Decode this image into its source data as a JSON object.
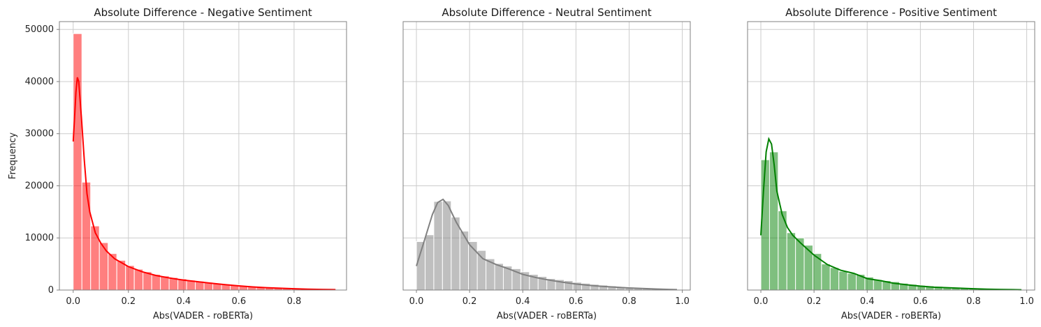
{
  "chart_data": [
    {
      "type": "bar",
      "title": "Absolute Difference - Negative Sentiment",
      "xlabel": "Abs(VADER - roBERTa)",
      "ylabel": "Frequency",
      "xlim": [
        -0.05,
        0.99
      ],
      "ylim": [
        0,
        51500
      ],
      "xticks": [
        "0.0",
        "0.2",
        "0.4",
        "0.6",
        "0.8"
      ],
      "yticks": [
        "0",
        "10000",
        "20000",
        "30000",
        "40000",
        "50000"
      ],
      "grid": true,
      "bar_color": "#ff0000",
      "bar_alpha": 0.5,
      "kde_color": "#ff0000",
      "bin_start": 0.0,
      "bin_width": 0.0316,
      "values": [
        49200,
        20700,
        12300,
        9100,
        7000,
        5700,
        4700,
        4000,
        3500,
        3000,
        2700,
        2400,
        2150,
        1900,
        1700,
        1500,
        1300,
        1150,
        1000,
        850,
        720,
        600,
        500,
        420,
        350,
        300,
        250,
        200,
        160,
        130
      ],
      "kde": {
        "x": [
          0.0,
          0.005,
          0.01,
          0.015,
          0.02,
          0.03,
          0.04,
          0.05,
          0.06,
          0.08,
          0.1,
          0.12,
          0.15,
          0.2,
          0.25,
          0.3,
          0.35,
          0.4,
          0.45,
          0.5,
          0.55,
          0.6,
          0.65,
          0.7,
          0.75,
          0.8,
          0.85,
          0.9,
          0.95
        ],
        "y": [
          28500,
          33000,
          38000,
          40800,
          40000,
          33000,
          25000,
          18500,
          15000,
          11000,
          9000,
          7500,
          6000,
          4500,
          3500,
          2800,
          2300,
          1900,
          1600,
          1300,
          1050,
          800,
          600,
          450,
          350,
          250,
          180,
          120,
          80
        ]
      }
    },
    {
      "type": "bar",
      "title": "Absolute Difference - Neutral Sentiment",
      "xlabel": "Abs(VADER - roBERTa)",
      "ylabel": "",
      "xlim": [
        -0.05,
        1.03
      ],
      "ylim": [
        0,
        51500
      ],
      "xticks": [
        "0.0",
        "0.2",
        "0.4",
        "0.6",
        "0.8",
        "1.0"
      ],
      "yticks": [],
      "grid": true,
      "bar_color": "#808080",
      "bar_alpha": 0.5,
      "kde_color": "#808080",
      "bin_start": 0.0,
      "bin_width": 0.0327,
      "values": [
        9300,
        10600,
        17000,
        17100,
        14000,
        11300,
        9300,
        7600,
        6000,
        5100,
        4600,
        4100,
        3500,
        3000,
        2600,
        2200,
        2000,
        1800,
        1500,
        1300,
        1100,
        950,
        800,
        650,
        550,
        450,
        350,
        280,
        220,
        160
      ],
      "kde": {
        "x": [
          0.0,
          0.03,
          0.06,
          0.08,
          0.1,
          0.12,
          0.15,
          0.2,
          0.25,
          0.3,
          0.35,
          0.4,
          0.45,
          0.5,
          0.55,
          0.6,
          0.65,
          0.7,
          0.75,
          0.8,
          0.85,
          0.9,
          0.95,
          0.98
        ],
        "y": [
          4600,
          9500,
          14500,
          16800,
          17400,
          16200,
          13000,
          8700,
          6000,
          4900,
          4000,
          3000,
          2400,
          1900,
          1500,
          1150,
          900,
          700,
          550,
          400,
          300,
          200,
          120,
          80
        ]
      }
    },
    {
      "type": "bar",
      "title": "Absolute Difference - Positive Sentiment",
      "xlabel": "Abs(VADER - roBERTa)",
      "ylabel": "",
      "xlim": [
        -0.05,
        1.03
      ],
      "ylim": [
        0,
        51500
      ],
      "xticks": [
        "0.0",
        "0.2",
        "0.4",
        "0.6",
        "0.8",
        "1.0"
      ],
      "yticks": [],
      "grid": true,
      "bar_color": "#008000",
      "bar_alpha": 0.5,
      "kde_color": "#008000",
      "bin_start": 0.0,
      "bin_width": 0.0326,
      "values": [
        25000,
        26500,
        15200,
        11000,
        10000,
        8600,
        7000,
        5000,
        4300,
        3600,
        3200,
        3000,
        2500,
        2000,
        1800,
        1600,
        1300,
        1100,
        900,
        800,
        700,
        600,
        500,
        400,
        350,
        300,
        250,
        200,
        150,
        120
      ],
      "kde": {
        "x": [
          0.0,
          0.01,
          0.02,
          0.03,
          0.04,
          0.05,
          0.06,
          0.08,
          0.1,
          0.12,
          0.15,
          0.2,
          0.25,
          0.3,
          0.35,
          0.4,
          0.45,
          0.5,
          0.55,
          0.6,
          0.65,
          0.7,
          0.75,
          0.8,
          0.85,
          0.9,
          0.95,
          0.98
        ],
        "y": [
          10500,
          19000,
          26500,
          29000,
          28000,
          24000,
          19000,
          14500,
          12000,
          10500,
          9000,
          6700,
          4900,
          3800,
          3200,
          2200,
          1800,
          1300,
          1000,
          750,
          550,
          450,
          350,
          250,
          180,
          120,
          80,
          60
        ]
      }
    }
  ]
}
